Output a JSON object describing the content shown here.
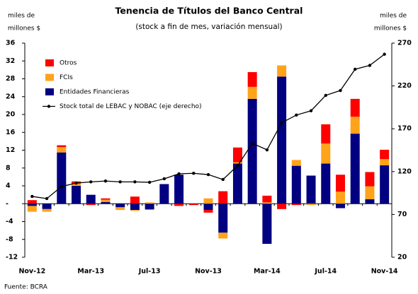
{
  "chart_data": {
    "type": "bar_line",
    "title": "Tenencia de Títulos del Banco Central",
    "subtitle": "(stock a fin de mes, variación mensual)",
    "ylabel": [
      "miles de",
      "millones $"
    ],
    "y2label": [
      "miles de",
      "millones $"
    ],
    "source": "Fuente: BCRA",
    "categories": [
      "Nov-12",
      null,
      null,
      null,
      "Mar-13",
      null,
      null,
      null,
      "Jul-13",
      null,
      null,
      null,
      "Nov-13",
      null,
      null,
      null,
      "Mar-14",
      null,
      null,
      null,
      "Jul-14",
      null,
      null,
      null,
      "Nov-14"
    ],
    "series": [
      {
        "name": "Entidades Financieras",
        "color": "#000080",
        "values": [
          -0.5,
          -1.2,
          11.5,
          4,
          2,
          0.4,
          -0.8,
          -1.4,
          -1.3,
          4.4,
          6.5,
          0,
          -1.4,
          -6.5,
          9,
          23.5,
          -9,
          28.5,
          8.5,
          6.3,
          9,
          -1,
          15.7,
          1,
          8.6
        ]
      },
      {
        "name": "FCIs",
        "color": "#ffa31a",
        "values": [
          -1.3,
          -0.6,
          1.2,
          0.5,
          0,
          0.5,
          -0.6,
          -0.2,
          0.3,
          0,
          0,
          0,
          1.2,
          -1.3,
          0.3,
          2.7,
          0.3,
          2.5,
          1.3,
          -0.3,
          4.5,
          2.7,
          3.8,
          2.9,
          1.4
        ]
      },
      {
        "name": "Otros",
        "color": "#ff0000",
        "values": [
          0.8,
          0,
          0.4,
          0.5,
          -0.3,
          0.3,
          0,
          1.6,
          0,
          0,
          -0.5,
          -0.3,
          -0.6,
          2.8,
          3.3,
          3.3,
          1.5,
          -1.2,
          -0.3,
          0,
          4.3,
          3.8,
          4,
          3.2,
          2.1
        ]
      },
      {
        "name": "Stock total de LEBAC y NOBAC (eje derecho)",
        "color": "#000000",
        "axis": "y2",
        "type": "line",
        "values": [
          91,
          88.5,
          102.5,
          106.6,
          108,
          109,
          108,
          108,
          107.5,
          111.6,
          117.4,
          118,
          116.5,
          110.8,
          127,
          153,
          145.4,
          177,
          186,
          191,
          209,
          214.7,
          239.5,
          244,
          257
        ]
      }
    ],
    "ylim": [
      -12,
      36
    ],
    "yticks": [
      -12,
      -8,
      -4,
      {
        "value": 0,
        "label": "-"
      },
      4,
      8,
      12,
      16,
      20,
      24,
      28,
      32,
      36
    ],
    "y2lim": [
      20,
      270
    ],
    "y2ticks": [
      20,
      70,
      120,
      170,
      220,
      270
    ],
    "legend": "upper left"
  }
}
